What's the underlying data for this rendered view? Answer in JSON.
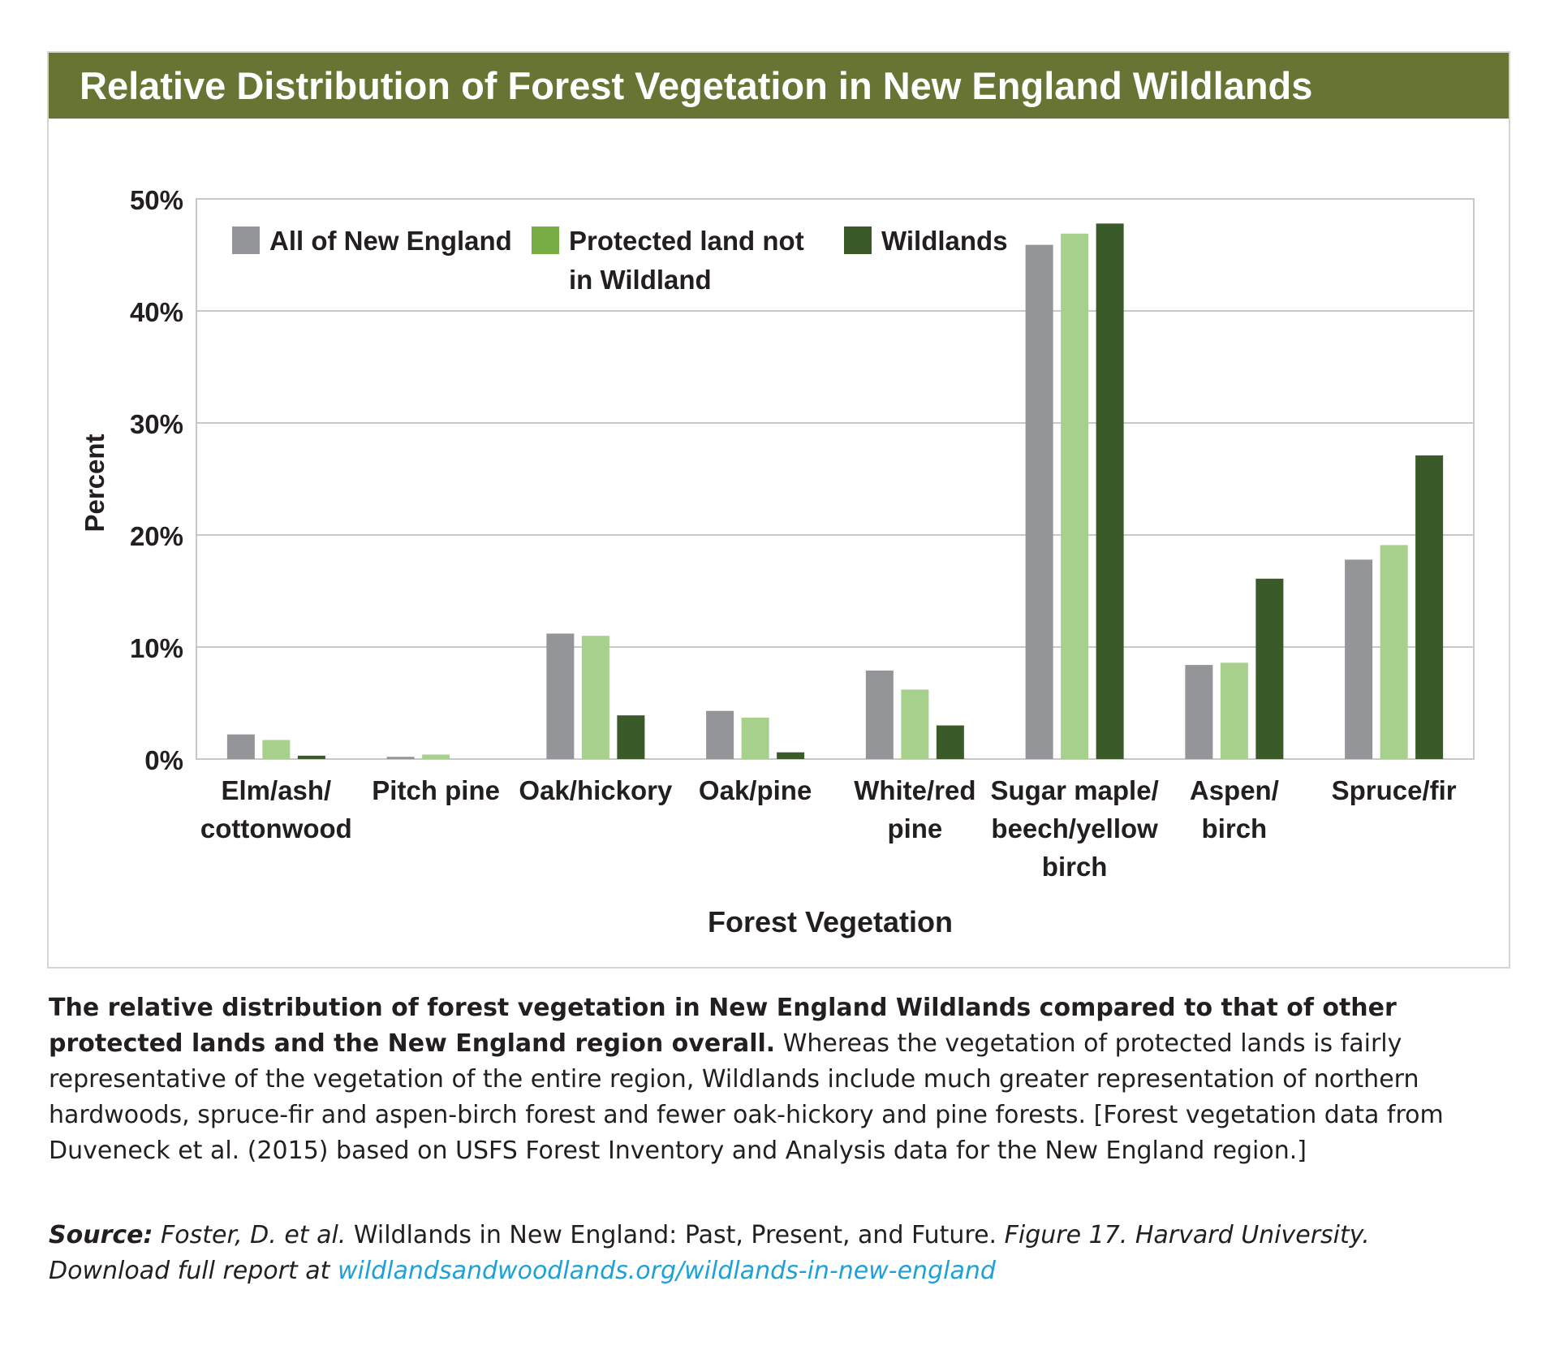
{
  "title": "Relative Distribution of Forest Vegetation in New England Wildlands",
  "colors": {
    "title_bar": "#667534",
    "all_new_england": "#939598",
    "protected": "#a8d08d",
    "protected_legend": "#78ac44",
    "wildlands": "#3b5a2a",
    "grid": "#c8c8c8",
    "link": "#1ea1d8"
  },
  "chart_data": {
    "type": "bar",
    "title": "Relative Distribution of Forest Vegetation in New England Wildlands",
    "xlabel": "Forest Vegetation",
    "ylabel": "Percent",
    "ylim": [
      0,
      50
    ],
    "yticks": [
      "0%",
      "10%",
      "20%",
      "30%",
      "40%",
      "50%"
    ],
    "grid": true,
    "legend_position": "top-left",
    "categories": [
      [
        "Elm/ash/",
        "cottonwood"
      ],
      [
        "Pitch pine"
      ],
      [
        "Oak/hickory"
      ],
      [
        "Oak/pine"
      ],
      [
        "White/red",
        "pine"
      ],
      [
        "Sugar maple/",
        "beech/yellow",
        "birch"
      ],
      [
        "Aspen/",
        "birch"
      ],
      [
        "Spruce/fir"
      ]
    ],
    "series": [
      {
        "name": "All of New England",
        "values": [
          2.2,
          0.2,
          11.2,
          4.3,
          7.9,
          45.9,
          8.4,
          17.8
        ]
      },
      {
        "name": "Protected land not in Wildland",
        "legend_lines": [
          "Protected land not",
          "in Wildland"
        ],
        "values": [
          1.7,
          0.4,
          11.0,
          3.7,
          6.2,
          46.9,
          8.6,
          19.1
        ]
      },
      {
        "name": "Wildlands",
        "values": [
          0.3,
          0.0,
          3.9,
          0.6,
          3.0,
          47.8,
          16.1,
          27.1
        ]
      }
    ]
  },
  "caption": {
    "bold": "The relative distribution of forest vegetation in New England Wildlands compared to that of other protected lands and the New England region overall.",
    "rest": " Whereas the vegetation of protected lands is fairly representative of the vegetation of the entire region, Wildlands include much greater representation of northern hardwoods, spruce-fir and aspen-birch forest and fewer oak-hickory and pine forests. [Forest vegetation data from Duveneck et al. (2015) based on USFS Forest Inventory and Analysis data for the New England region.]"
  },
  "source": {
    "label": "Source:",
    "authors": " Foster, D. et al.",
    "report_title": " Wildlands in New England: Past, Present, and Future.",
    "figure": " Figure 17. Harvard University.",
    "download": "Download full report at ",
    "link": "wildlandsandwoodlands.org/wildlands-in-new-england"
  }
}
